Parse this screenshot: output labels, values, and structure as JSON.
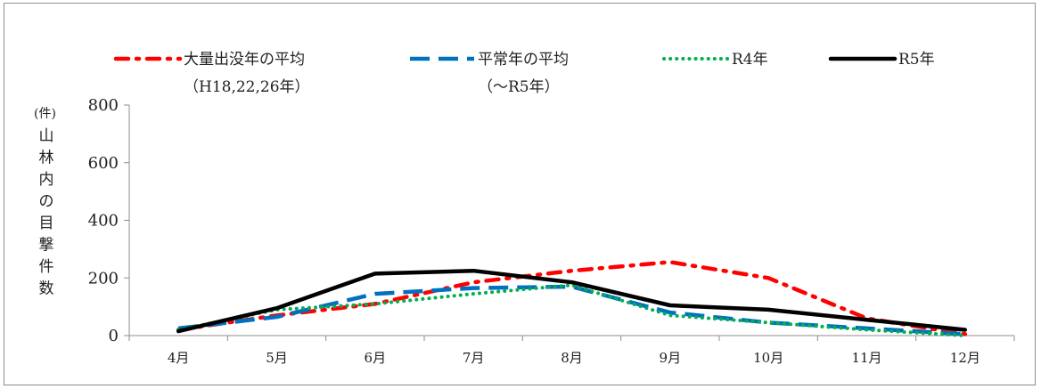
{
  "chart_data": {
    "type": "line",
    "title": "",
    "xlabel": "",
    "ylabel": "山林内の目撃件数",
    "y_unit": "(件)",
    "ylim": [
      0,
      800
    ],
    "yticks": [
      0,
      200,
      400,
      600,
      800
    ],
    "grid": false,
    "legend_position": "top",
    "categories": [
      "4月",
      "5月",
      "6月",
      "7月",
      "8月",
      "9月",
      "10月",
      "11月",
      "12月"
    ],
    "series": [
      {
        "name": "大量出没年の平均",
        "name_line2": "（H18,22,26年）",
        "color": "#ff0000",
        "style": "dash-dot",
        "values": [
          20,
          70,
          110,
          185,
          225,
          255,
          200,
          60,
          5
        ]
      },
      {
        "name": "平常年の平均",
        "name_line2": "（～R5年）",
        "color": "#0070c0",
        "style": "dashed",
        "values": [
          25,
          65,
          145,
          165,
          170,
          80,
          45,
          25,
          5
        ]
      },
      {
        "name": "R4年",
        "name_line2": "",
        "color": "#00b050",
        "style": "dotted",
        "values": [
          20,
          90,
          110,
          145,
          175,
          70,
          45,
          20,
          0
        ]
      },
      {
        "name": "R5年",
        "name_line2": "",
        "color": "#000000",
        "style": "solid",
        "values": [
          15,
          95,
          215,
          225,
          185,
          105,
          90,
          55,
          20
        ]
      }
    ]
  }
}
